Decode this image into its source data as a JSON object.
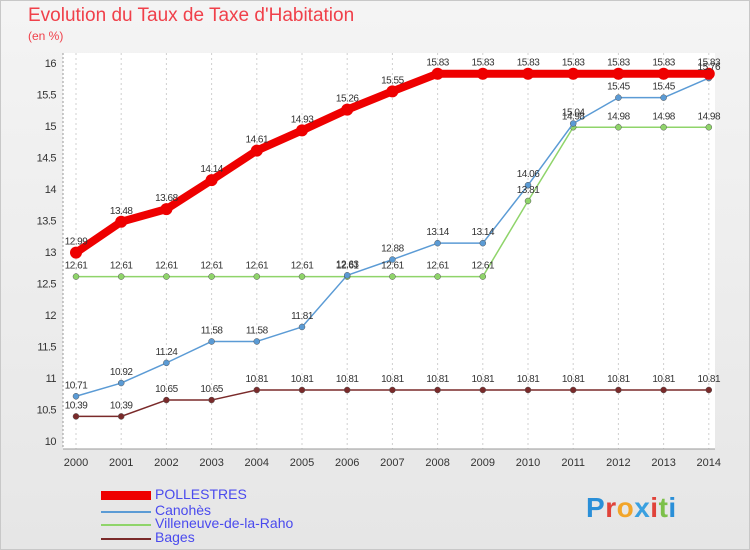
{
  "header": {
    "title": "Evolution du Taux de Taxe d'Habitation",
    "subtitle": "(en %)"
  },
  "chart_data": {
    "type": "line",
    "title": "Evolution du Taux de Taxe d'Habitation",
    "ylabel": "(en %)",
    "xlabel": "",
    "x": [
      2000,
      2001,
      2002,
      2003,
      2004,
      2005,
      2006,
      2007,
      2008,
      2009,
      2010,
      2011,
      2012,
      2013,
      2014
    ],
    "ylim": [
      10,
      16
    ],
    "yticks": [
      10,
      10.5,
      11,
      11.5,
      12,
      12.5,
      13,
      13.5,
      14,
      14.5,
      15,
      15.5,
      16
    ],
    "grid": "vertical",
    "legend": "bottom-left",
    "series": [
      {
        "name": "POLLESTRES",
        "color": "#ee0000",
        "values": [
          12.99,
          13.48,
          13.68,
          14.14,
          14.61,
          14.93,
          15.26,
          15.55,
          15.83,
          15.83,
          15.83,
          15.83,
          15.83,
          15.83,
          15.83
        ]
      },
      {
        "name": "Canohès",
        "color": "#5b9bd5",
        "values": [
          10.71,
          10.92,
          11.24,
          11.58,
          11.58,
          11.81,
          12.63,
          12.88,
          13.14,
          13.14,
          14.06,
          15.04,
          15.45,
          15.45,
          15.76
        ]
      },
      {
        "name": "Villeneuve-de-la-Raho",
        "color": "#8fd46a",
        "values": [
          12.61,
          12.61,
          12.61,
          12.61,
          12.61,
          12.61,
          12.61,
          12.61,
          12.61,
          12.61,
          13.81,
          14.98,
          14.98,
          14.98,
          14.98
        ]
      },
      {
        "name": "Bages",
        "color": "#7a2a2a",
        "values": [
          10.39,
          10.39,
          10.65,
          10.65,
          10.81,
          10.81,
          10.81,
          10.81,
          10.81,
          10.81,
          10.81,
          10.81,
          10.81,
          10.81,
          10.81
        ]
      }
    ]
  },
  "legend": {
    "items": [
      "POLLESTRES",
      "Canohès",
      "Villeneuve-de-la-Raho",
      "Bages"
    ]
  },
  "logo": {
    "letters": [
      "P",
      "r",
      "o",
      "x",
      "i",
      "t",
      "i"
    ],
    "colors": [
      "#2a8fd8",
      "#e0433a",
      "#f2a52a",
      "#3aa0e0",
      "#e0433a",
      "#7cc04a",
      "#2a8fd8"
    ]
  }
}
